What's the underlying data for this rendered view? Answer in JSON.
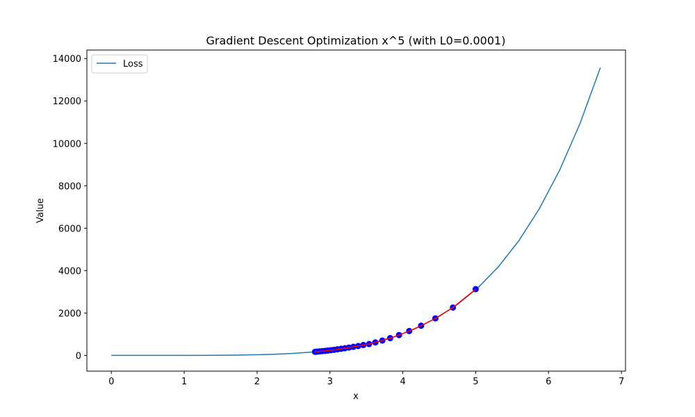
{
  "chart_data": {
    "type": "line",
    "title": "Gradient Descent Optimization x^5 (with L0=0.0001)",
    "xlabel": "x",
    "ylabel": "Value",
    "xlim": [
      -0.336,
      7.056
    ],
    "ylim": [
      -740,
      14400
    ],
    "x_ticks": [
      0,
      1,
      2,
      3,
      4,
      5,
      6,
      7
    ],
    "y_ticks": [
      0,
      2000,
      4000,
      6000,
      8000,
      10000,
      12000,
      14000
    ],
    "grid": false,
    "legend": {
      "position": "top-left",
      "entries": [
        "Loss"
      ]
    },
    "colors": {
      "loss": "#1f77b4",
      "path": "#ff0000",
      "points": "#0000ff"
    },
    "series": [
      {
        "name": "Loss",
        "x": [
          0,
          0.2796,
          0.5593,
          0.8389,
          1.1186,
          1.3982,
          1.6778,
          1.9575,
          2.2371,
          2.5168,
          2.7964,
          3.0761,
          3.3557,
          3.6353,
          3.915,
          4.1946,
          4.4743,
          4.7539,
          5.0336,
          5.3132,
          5.5928,
          5.8725,
          6.1521,
          6.4318,
          6.7114
        ],
        "y": [
          0,
          0.0017,
          0.0548,
          0.4159,
          1.7525,
          5.3485,
          13.3,
          28.76,
          56.08,
          100.9,
          171.1,
          275.5,
          426.3,
          636.3,
          921.1,
          1299,
          1788,
          2412,
          3200,
          4188,
          5412,
          6913,
          8736,
          10934,
          13573
        ]
      },
      {
        "name": "",
        "x": [
          5.0,
          4.688,
          4.4465,
          4.2509,
          4.0877,
          3.9479,
          3.8263,
          3.719,
          3.6233,
          3.537,
          3.4587,
          3.3872,
          3.3215,
          3.2607,
          3.2043,
          3.1517,
          3.1025,
          3.0563,
          3.0127,
          2.9716,
          2.9327,
          2.8957,
          2.8606,
          2.8272,
          2.7953
        ],
        "y": [
          3125,
          2260,
          1747,
          1402,
          1152,
          962,
          816,
          703,
          612,
          537,
          491,
          444,
          406,
          370,
          340,
          312,
          290,
          265,
          248,
          230,
          216,
          202,
          190,
          180,
          170
        ]
      }
    ]
  }
}
